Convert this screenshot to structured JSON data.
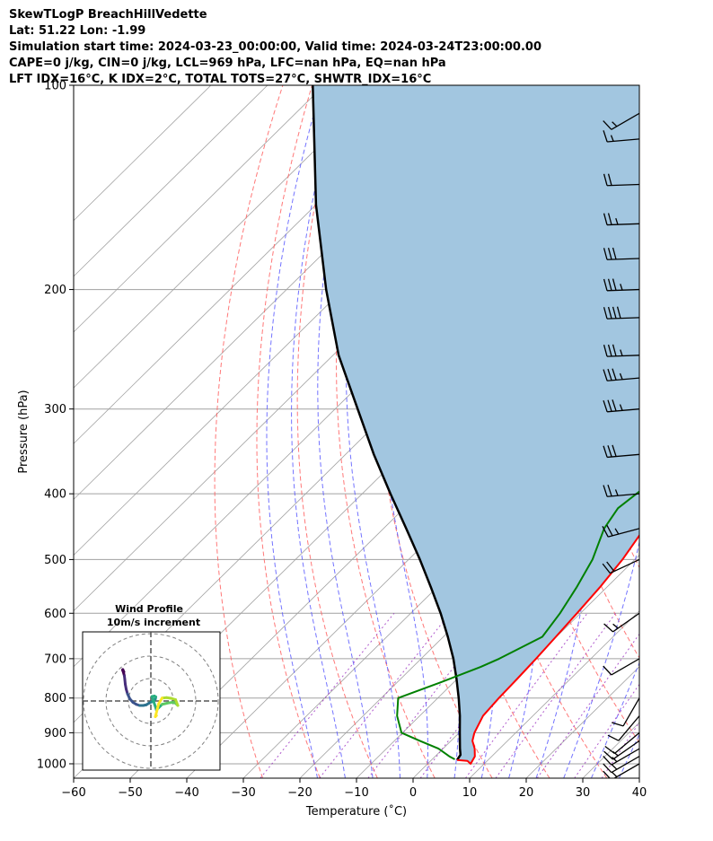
{
  "header": {
    "line1": "SkewTLogP BreachHillVedette",
    "line2": "Lat: 51.22   Lon: -1.99",
    "line3": "Simulation start time: 2024-03-23_00:00:00, Valid time: 2024-03-24T23:00:00.00",
    "line4": "CAPE=0 j/kg, CIN=0 j/kg, LCL=969 hPa, LFC=nan hPa, EQ=nan hPa",
    "line5": "LFT IDX=16°C, K IDX=2°C, TOTAL TOTS=27°C, SHWTR_IDX=16°C"
  },
  "colors": {
    "temperature": "#ff0000",
    "dewpoint": "#008000",
    "parcel": "#000000",
    "cape_fill": "#a2c6e0",
    "dry_adiabat": "#ff6060",
    "moist_adiabat": "#5a5aff",
    "mixing_ratio": "#9b30c0",
    "isotherm": "#a0a0a0",
    "hodograph_ring": "#808080"
  },
  "chart_data": [
    {
      "type": "line",
      "title": "",
      "xlabel": "Temperature (˚C)",
      "ylabel": "Pressure (hPa)",
      "xlim": [
        -60,
        40
      ],
      "ylim": [
        1050,
        100
      ],
      "y_scale": "log",
      "x_ticks": [
        -60,
        -50,
        -40,
        -30,
        -20,
        -10,
        0,
        10,
        20,
        30,
        40
      ],
      "x_tick_labels": [
        "−60",
        "−50",
        "−40",
        "−30",
        "−20",
        "−10",
        "0",
        "10",
        "20",
        "30",
        "40"
      ],
      "y_ticks": [
        1000,
        900,
        800,
        700,
        600,
        500,
        400,
        300,
        200,
        100
      ],
      "y_tick_labels": [
        "1000",
        "900",
        "800",
        "700",
        "600",
        "500",
        "400",
        "300",
        "200",
        "100"
      ],
      "grid": true,
      "series": [
        {
          "key": "temperature",
          "pressure": [
            987,
            990,
            1000,
            975,
            950,
            925,
            900,
            850,
            800,
            750,
            700,
            650,
            600,
            550,
            500,
            450,
            400,
            350,
            300,
            270,
            250,
            235,
            220,
            205,
            200,
            175,
            150,
            130,
            115,
            100
          ],
          "values": [
            4.5,
            6.5,
            7.6,
            7.0,
            5.6,
            3.8,
            2.7,
            1.2,
            0.8,
            0.6,
            0.3,
            -0.1,
            -0.6,
            -1.2,
            -2.2,
            -3.9,
            -5.4,
            -8.0,
            -10.1,
            -11.1,
            -12.3,
            -13.0,
            -13.0,
            -12.5,
            -11.8,
            -3.3,
            1.5,
            3.5,
            6.0,
            10.0
          ]
        },
        {
          "key": "dewpoint",
          "pressure": [
            985,
            975,
            950,
            925,
            900,
            850,
            800,
            760,
            720,
            700,
            650,
            600,
            550,
            500,
            450,
            420,
            380,
            340,
            310,
            280,
            250,
            230,
            210,
            195,
            180,
            170,
            160,
            150,
            120,
            100
          ],
          "values": [
            4.0,
            2.5,
            -0.8,
            -5.5,
            -10.2,
            -14.0,
            -17.0,
            -12.5,
            -8.0,
            -6.2,
            -2.5,
            -3.6,
            -5.3,
            -7.5,
            -11.0,
            -12.2,
            -10.8,
            -11.8,
            -13.0,
            -14.2,
            -15.0,
            -15.6,
            -15.5,
            -14.4,
            -12.8,
            -13.4,
            -15.0,
            -16.2,
            -8.0,
            0.0
          ]
        },
        {
          "key": "parcel",
          "pressure": [
            987,
            970,
            950,
            900,
            850,
            800,
            750,
            700,
            650,
            600,
            550,
            500,
            450,
            400,
            350,
            300,
            250,
            200,
            150,
            100
          ],
          "values": [
            4.5,
            4.2,
            3.0,
            0.1,
            -2.9,
            -6.3,
            -10.1,
            -14.3,
            -19.2,
            -24.7,
            -31.0,
            -38.0,
            -46.0,
            -55.0,
            -65.0,
            -76.0,
            -89.0,
            -103.0,
            -120.0,
            -142.0
          ]
        }
      ],
      "wind_barbs": [
        {
          "p": 1000,
          "spd": 15,
          "dir": 300
        },
        {
          "p": 975,
          "spd": 15,
          "dir": 300
        },
        {
          "p": 950,
          "spd": 15,
          "dir": 300
        },
        {
          "p": 925,
          "spd": 15,
          "dir": 305
        },
        {
          "p": 900,
          "spd": 10,
          "dir": 310
        },
        {
          "p": 850,
          "spd": 10,
          "dir": 320
        },
        {
          "p": 800,
          "spd": 10,
          "dir": 330
        },
        {
          "p": 700,
          "spd": 10,
          "dir": 300
        },
        {
          "p": 600,
          "spd": 15,
          "dir": 305
        },
        {
          "p": 500,
          "spd": 20,
          "dir": 295
        },
        {
          "p": 450,
          "spd": 25,
          "dir": 285
        },
        {
          "p": 400,
          "spd": 25,
          "dir": 275
        },
        {
          "p": 350,
          "spd": 30,
          "dir": 275
        },
        {
          "p": 300,
          "spd": 35,
          "dir": 275
        },
        {
          "p": 270,
          "spd": 35,
          "dir": 275
        },
        {
          "p": 250,
          "spd": 35,
          "dir": 272
        },
        {
          "p": 220,
          "spd": 40,
          "dir": 272
        },
        {
          "p": 200,
          "spd": 35,
          "dir": 272
        },
        {
          "p": 180,
          "spd": 30,
          "dir": 272
        },
        {
          "p": 160,
          "spd": 25,
          "dir": 272
        },
        {
          "p": 140,
          "spd": 20,
          "dir": 272
        },
        {
          "p": 120,
          "spd": 15,
          "dir": 275
        },
        {
          "p": 110,
          "spd": 15,
          "dir": 300
        }
      ]
    },
    {
      "type": "scatter",
      "title": "Wind Profile",
      "subtitle": "10m/s increment",
      "ring_step": 10,
      "grid": true,
      "u": [
        -12,
        -12.5,
        -12.6,
        -12.2,
        -11.8,
        -11.6,
        -11.4,
        -11.0,
        -10.4,
        -9.4,
        -8.0,
        -6.5,
        -5.0,
        -3.4,
        -2.0,
        -0.9,
        0.3,
        1.4,
        2.0,
        2.2,
        1.6,
        0.5,
        2.5,
        5.0,
        8.0,
        10.0,
        11.0,
        12.0,
        11.0,
        9.0,
        7.0,
        5.0,
        3.5,
        2.0,
        2.5
      ],
      "v": [
        13.0,
        14.0,
        13.8,
        12.7,
        11.2,
        9.5,
        7.5,
        5.3,
        3.2,
        1.0,
        -0.6,
        -1.5,
        -2.0,
        -2.0,
        -1.7,
        -1.0,
        -0.4,
        0.1,
        0.9,
        1.8,
        2.2,
        2.0,
        -4.0,
        -1.5,
        -0.8,
        -0.6,
        -1.0,
        -2.0,
        0.6,
        1.2,
        1.5,
        1.3,
        -1.2,
        -7.0,
        -6.5
      ]
    }
  ]
}
